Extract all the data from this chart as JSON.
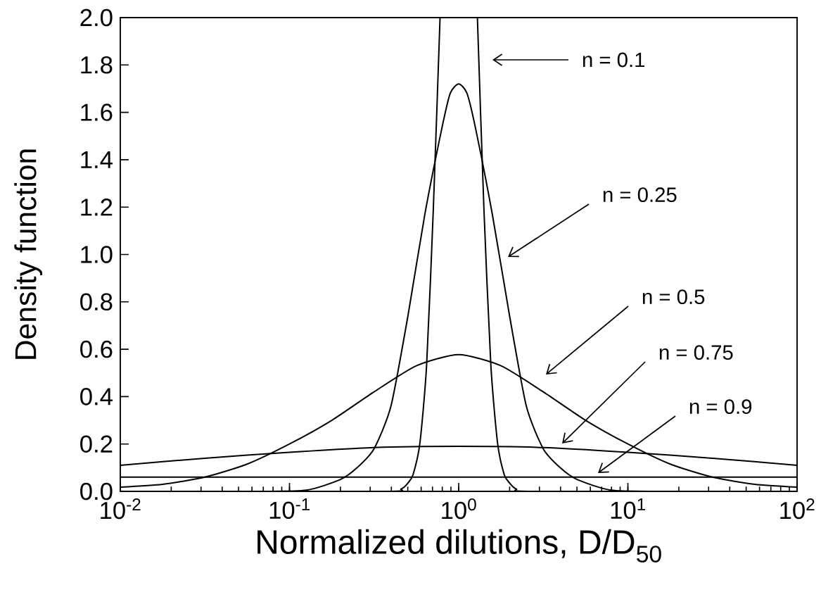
{
  "chart_data": {
    "type": "line",
    "xlabel": "Normalized dilutions, D/D$_{50}$",
    "ylabel": "Density function",
    "log": "x",
    "grid": false,
    "marker": "none",
    "line_style": "solid",
    "xlim": [
      0.01,
      100
    ],
    "ylim": [
      0,
      2
    ],
    "xticks": [
      {
        "value": 0.01,
        "label": "10$^{-2}$"
      },
      {
        "value": 0.1,
        "label": "10$^{-1}$"
      },
      {
        "value": 1,
        "label": "10$^{0}$"
      },
      {
        "value": 10,
        "label": "10$^{1}$"
      },
      {
        "value": 100,
        "label": "10$^{2}$"
      }
    ],
    "yticks": [
      {
        "value": 0,
        "label": "0.0"
      },
      0.2,
      0.4,
      0.6,
      0.8,
      {
        "value": 1,
        "label": "1.0"
      },
      1.2,
      1.4,
      1.6,
      1.8,
      {
        "value": 2,
        "label": "2.0"
      }
    ],
    "series": [
      {
        "color": "#000000",
        "x": [
          0.01,
          0.355,
          0.457,
          0.501,
          0.537,
          0.589,
          0.646,
          0.708,
          0.776,
          1,
          1.29,
          1.41,
          1.55,
          1.7,
          1.86,
          2.0,
          2.19,
          2.82,
          100
        ],
        "values": [
          0,
          0,
          0.01,
          0.035,
          0.07,
          0.2,
          0.53,
          1.19,
          2.0,
          null,
          2.0,
          1.19,
          0.53,
          0.2,
          0.07,
          0.035,
          0.01,
          0,
          0
        ]
      },
      {
        "color": "#000000",
        "x": [
          0.01,
          0.0631,
          0.126,
          0.2,
          0.251,
          0.316,
          0.398,
          0.501,
          0.631,
          0.794,
          0.891,
          1,
          1.12,
          1.26,
          1.58,
          2.0,
          2.51,
          3.16,
          3.98,
          5.01,
          7.94,
          15.8,
          100
        ],
        "values": [
          0,
          0,
          0.005,
          0.05,
          0.1,
          0.18,
          0.36,
          0.74,
          1.17,
          1.53,
          1.68,
          1.72,
          1.68,
          1.53,
          1.17,
          0.74,
          0.36,
          0.18,
          0.1,
          0.05,
          0.005,
          0,
          0
        ]
      },
      {
        "color": "#000000",
        "x": [
          0.01,
          0.0178,
          0.0316,
          0.0562,
          0.1,
          0.178,
          0.316,
          0.562,
          1,
          1.78,
          3.16,
          5.62,
          10,
          17.8,
          31.6,
          56.2,
          100
        ],
        "values": [
          0.018,
          0.03,
          0.06,
          0.115,
          0.2,
          0.3,
          0.42,
          0.53,
          0.577,
          0.53,
          0.42,
          0.3,
          0.2,
          0.115,
          0.06,
          0.03,
          0.018
        ]
      },
      {
        "color": "#000000",
        "x": [
          0.01,
          0.0316,
          0.1,
          0.316,
          1,
          3.16,
          10,
          31.6,
          100
        ],
        "values": [
          0.11,
          0.14,
          0.165,
          0.185,
          0.19,
          0.185,
          0.165,
          0.14,
          0.11
        ]
      },
      {
        "color": "#000000",
        "x": [
          0.01,
          1,
          100
        ],
        "values": [
          0.06,
          0.06,
          0.06
        ]
      }
    ],
    "annotations": [
      "n = 0.1",
      "n = 0.25",
      "n = 0.5",
      "n = 0.75",
      "n = 0.9"
    ]
  }
}
